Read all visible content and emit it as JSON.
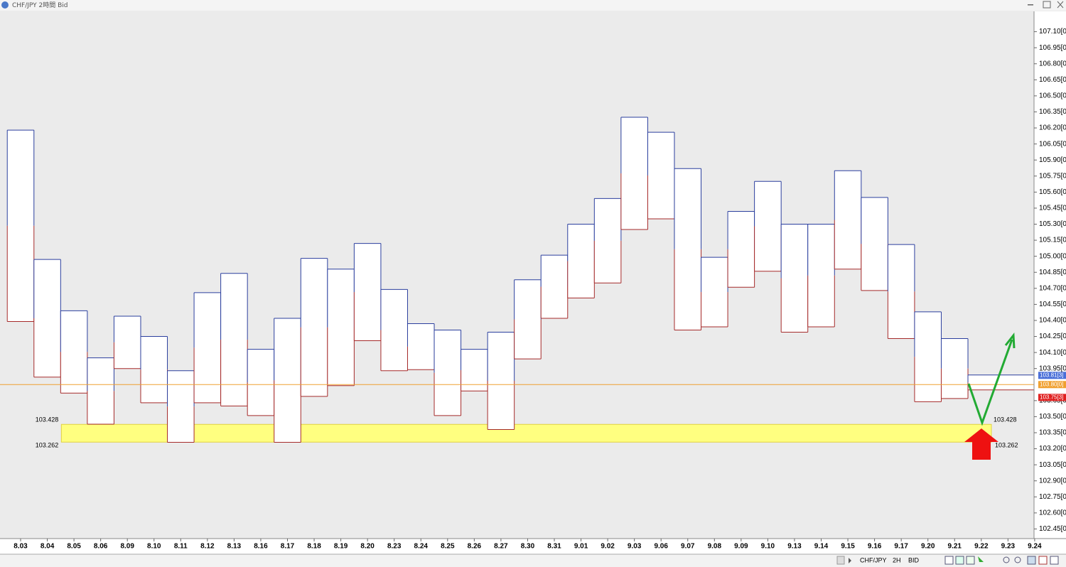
{
  "chart_data": {
    "type": "range_box",
    "title": "CHF/JPY 2時間 Bid",
    "categories": [
      "8.03",
      "8.04",
      "8.05",
      "8.06",
      "8.09",
      "8.10",
      "8.11",
      "8.12",
      "8.13",
      "8.16",
      "8.17",
      "8.18",
      "8.19",
      "8.20",
      "8.23",
      "8.24",
      "8.25",
      "8.26",
      "8.27",
      "8.30",
      "8.31",
      "9.01",
      "9.02",
      "9.03",
      "9.06",
      "9.07",
      "9.08",
      "9.09",
      "9.10",
      "9.13",
      "9.14",
      "9.15",
      "9.16",
      "9.17",
      "9.20",
      "9.21",
      "9.22",
      "9.23",
      "9.24"
    ],
    "highs": [
      106.18,
      104.97,
      104.49,
      104.05,
      104.44,
      104.25,
      103.93,
      104.66,
      104.84,
      104.13,
      104.42,
      104.98,
      104.88,
      105.12,
      104.69,
      104.37,
      104.31,
      104.13,
      104.29,
      104.78,
      105.01,
      105.3,
      105.54,
      106.3,
      106.16,
      105.82,
      104.99,
      105.42,
      105.7,
      105.3,
      105.3,
      105.8,
      105.55,
      105.11,
      104.48,
      104.23,
      103.89,
      null,
      null
    ],
    "lows": [
      104.39,
      103.87,
      103.72,
      103.43,
      103.95,
      103.63,
      103.26,
      103.63,
      103.6,
      103.51,
      103.26,
      103.69,
      103.79,
      104.21,
      103.93,
      103.94,
      103.51,
      103.74,
      103.38,
      104.04,
      104.42,
      104.61,
      104.75,
      105.25,
      105.35,
      104.31,
      104.34,
      104.71,
      104.86,
      104.29,
      104.34,
      104.88,
      104.68,
      104.23,
      103.64,
      103.67,
      103.75,
      null,
      null
    ],
    "high_color": "#2b3f9e",
    "low_color": "#a52a2a",
    "ylim": [
      102.36,
      107.29
    ],
    "yticks": [
      {
        "value": 107.1,
        "label": "107.10[0"
      },
      {
        "value": 106.95,
        "label": "106.95[0"
      },
      {
        "value": 106.8,
        "label": "106.80[0"
      },
      {
        "value": 106.65,
        "label": "106.65[0"
      },
      {
        "value": 106.5,
        "label": "106.50[0"
      },
      {
        "value": 106.35,
        "label": "106.35[0"
      },
      {
        "value": 106.2,
        "label": "106.20[0"
      },
      {
        "value": 106.05,
        "label": "106.05[0"
      },
      {
        "value": 105.9,
        "label": "105.90[0"
      },
      {
        "value": 105.75,
        "label": "105.75[0"
      },
      {
        "value": 105.6,
        "label": "105.60[0"
      },
      {
        "value": 105.45,
        "label": "105.45[0"
      },
      {
        "value": 105.3,
        "label": "105.30[0"
      },
      {
        "value": 105.15,
        "label": "105.15[0"
      },
      {
        "value": 105.0,
        "label": "105.00[0"
      },
      {
        "value": 104.85,
        "label": "104.85[0"
      },
      {
        "value": 104.7,
        "label": "104.70[0"
      },
      {
        "value": 104.55,
        "label": "104.55[0"
      },
      {
        "value": 104.4,
        "label": "104.40[0"
      },
      {
        "value": 104.25,
        "label": "104.25[0"
      },
      {
        "value": 104.1,
        "label": "104.10[0"
      },
      {
        "value": 103.95,
        "label": "103.95[0"
      },
      {
        "value": 103.65,
        "label": "103.65[0"
      },
      {
        "value": 103.5,
        "label": "103.50[0"
      },
      {
        "value": 103.35,
        "label": "103.35[0"
      },
      {
        "value": 103.2,
        "label": "103.20[0"
      },
      {
        "value": 103.05,
        "label": "103.05[0"
      },
      {
        "value": 102.9,
        "label": "102.90[0"
      },
      {
        "value": 102.75,
        "label": "102.75[0"
      },
      {
        "value": 102.6,
        "label": "102.60[0"
      },
      {
        "value": 102.45,
        "label": "102.45[0"
      }
    ],
    "zone": {
      "top": 103.428,
      "bottom": 103.262,
      "color": "#ffff80"
    },
    "price_labels": [
      {
        "value": 103.813,
        "label": "103.81[3]",
        "color": "#4a6fd8"
      },
      {
        "value": 103.8,
        "label": "103.80[0]",
        "color": "#f0a030"
      },
      {
        "value": 103.753,
        "label": "103.75[3]",
        "color": "#e02020"
      }
    ],
    "price_line": {
      "value": 103.8,
      "color": "#f0a030"
    },
    "toolbar": {
      "symbol": "CHF/JPY",
      "timeframe": "2H",
      "side": "BID"
    }
  }
}
